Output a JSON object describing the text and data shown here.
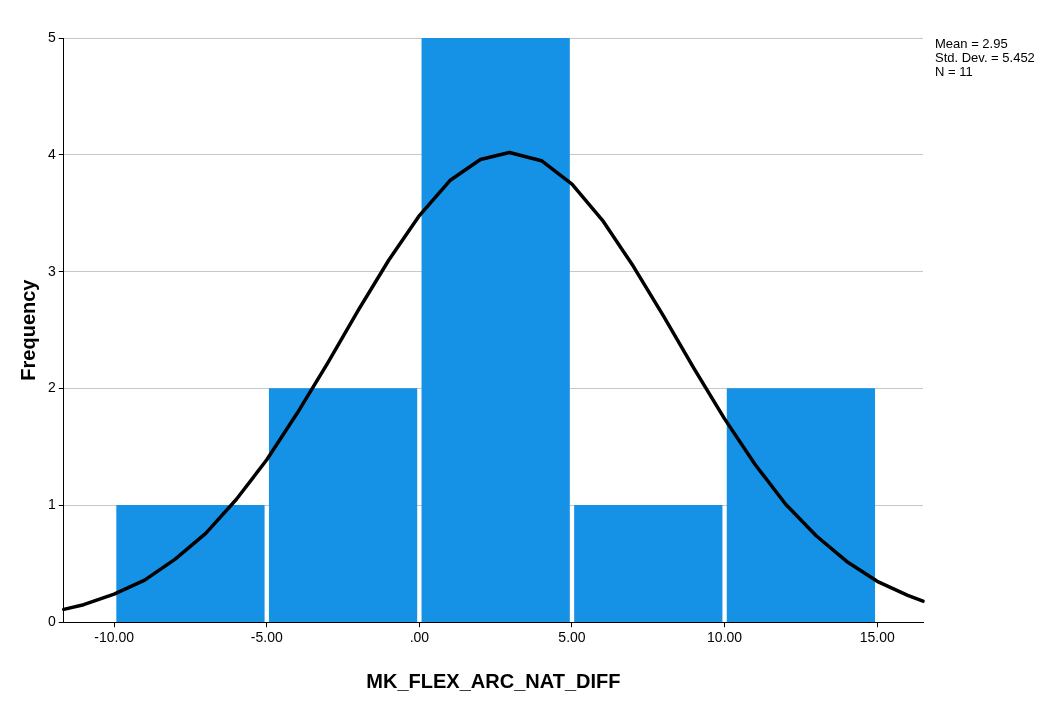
{
  "chart_data": {
    "type": "histogram",
    "xlabel": "MK_FLEX_ARC_NAT_DIFF",
    "ylabel": "Frequency",
    "bins": [
      -10,
      -5,
      0,
      5,
      10,
      15
    ],
    "values": [
      1,
      2,
      5,
      1,
      2
    ],
    "color": "#1591e6",
    "series": [
      {
        "type": "line",
        "color": "#000000",
        "x": [
          -11.65,
          -11,
          -10,
          -9,
          -8,
          -7,
          -6,
          -5,
          -4,
          -3,
          -2,
          -1,
          0,
          1,
          2,
          2.95,
          4,
          5,
          6,
          7,
          8,
          9,
          10,
          11,
          12,
          13,
          14,
          15,
          16,
          16.5
        ],
        "values": [
          0.11,
          0.15,
          0.24,
          0.36,
          0.54,
          0.76,
          1.05,
          1.39,
          1.79,
          2.22,
          2.67,
          3.1,
          3.48,
          3.78,
          3.96,
          4.02,
          3.95,
          3.75,
          3.44,
          3.05,
          2.62,
          2.17,
          1.74,
          1.35,
          1.01,
          0.74,
          0.52,
          0.35,
          0.23,
          0.18
        ]
      }
    ],
    "xlim": [
      -11.65,
      16.5
    ],
    "xticks": [
      {
        "value": -10,
        "label": "-10.00"
      },
      {
        "value": -5,
        "label": "-5.00"
      },
      {
        "value": 0,
        "label": ".00"
      },
      {
        "value": 5,
        "label": "5.00"
      },
      {
        "value": 10,
        "label": "10.00"
      },
      {
        "value": 15,
        "label": "15.00"
      }
    ],
    "ylim": [
      0,
      5
    ],
    "yticks": [
      0,
      1,
      2,
      3,
      4,
      5
    ],
    "grid": "y",
    "legend": false,
    "marker": "none",
    "line_style": "solid",
    "annotations": [
      "Mean = 2.95",
      "Std. Dev. = 5.452",
      "N = 11"
    ]
  }
}
